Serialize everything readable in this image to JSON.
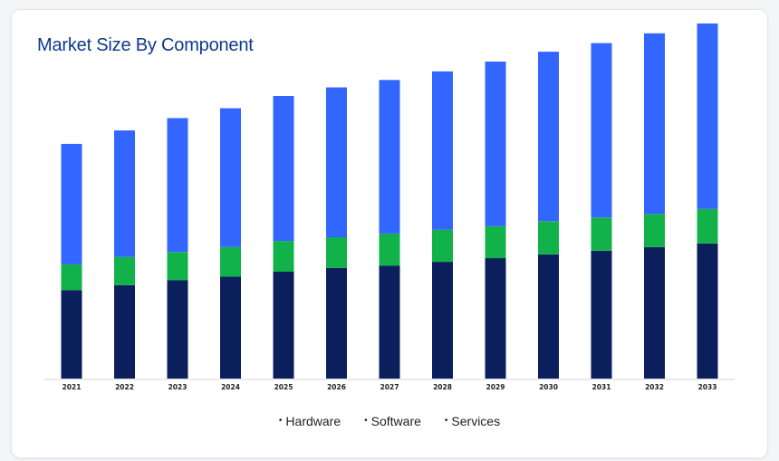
{
  "card": {
    "title": "Market Size By Component"
  },
  "colors": {
    "title": "#0d3a8c",
    "hardware": "#0a1f5c",
    "software": "#12b24a",
    "services": "#3366ff",
    "axis": "#d4d4d4",
    "tick_label": "#222222"
  },
  "chart_data": {
    "type": "bar",
    "stacked": true,
    "title": "Market Size By Component",
    "xlabel": "",
    "ylabel": "",
    "categories": [
      "2021",
      "2022",
      "2023",
      "2024",
      "2025",
      "2026",
      "2027",
      "2028",
      "2029",
      "2030",
      "2031",
      "2032",
      "2033"
    ],
    "series": [
      {
        "name": "Hardware",
        "values": [
          72,
          76,
          80,
          83,
          87,
          90,
          92,
          95,
          98,
          101,
          104,
          107,
          110
        ]
      },
      {
        "name": "Software",
        "values": [
          21,
          23,
          23,
          24,
          25,
          25,
          26,
          26,
          26,
          27,
          27,
          27,
          28
        ]
      },
      {
        "name": "Services",
        "values": [
          98,
          103,
          109,
          113,
          118,
          122,
          125,
          129,
          134,
          138,
          142,
          147,
          151
        ]
      }
    ],
    "ylim": [
      0,
      300
    ],
    "grid": false,
    "legend_position": "bottom"
  }
}
